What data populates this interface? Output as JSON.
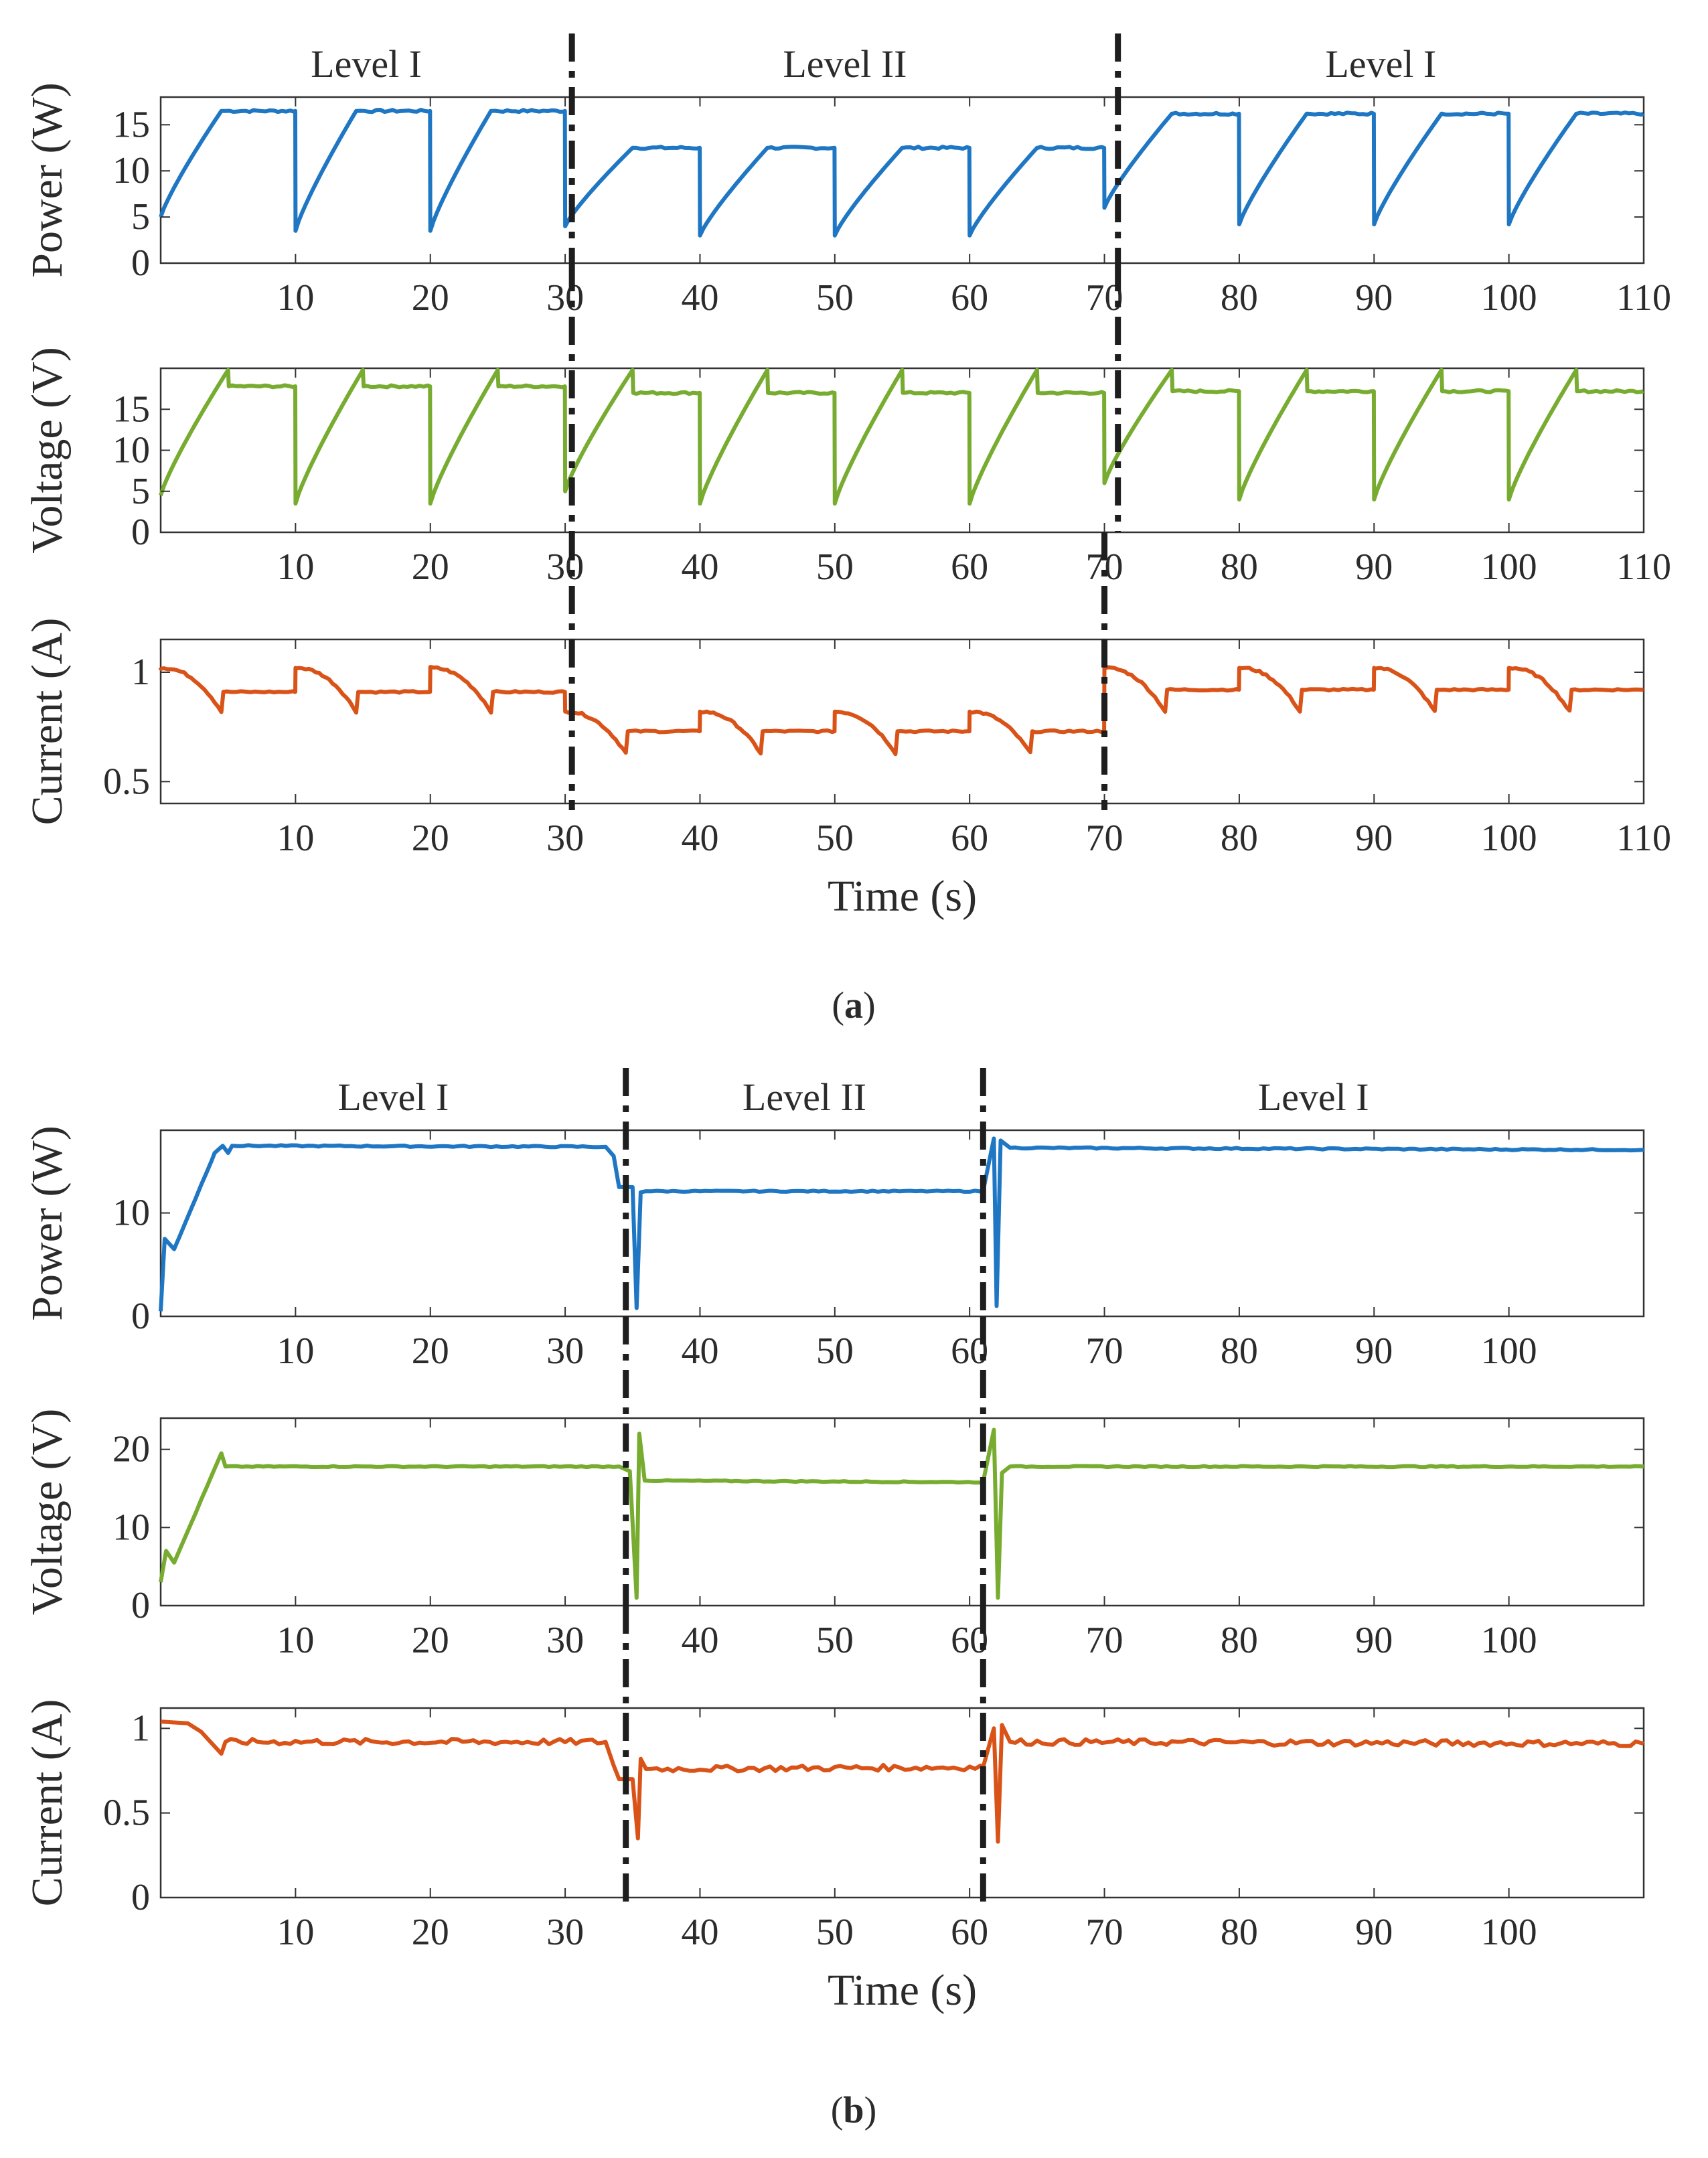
{
  "figure": {
    "panel_a_label": {
      "open": "(",
      "letter": "a",
      "close": ")"
    },
    "panel_b_label": {
      "open": "(",
      "letter": "b",
      "close": ")"
    }
  },
  "colors": {
    "power": "#1f77c4",
    "voltage": "#77ac30",
    "current": "#d95319",
    "divider": "#1e1e1e",
    "axes": "#333333"
  },
  "chart_data": [
    {
      "type": "line",
      "title": "Power (a)",
      "xlabel": "",
      "ylabel": "Power (W)",
      "xlim": [
        0,
        110
      ],
      "ylim": [
        0,
        18
      ],
      "xticks": [
        10,
        20,
        30,
        40,
        50,
        60,
        70,
        80,
        90,
        100,
        110
      ],
      "yticks": [
        0,
        5,
        10,
        15
      ],
      "series": [
        {
          "name": "Power",
          "color": "#1f77c4",
          "pattern": "sawtooth",
          "segments": [
            {
              "t0": 0,
              "t1": 30,
              "level": 16.5,
              "start": 5,
              "period": 10,
              "rise": 4.5,
              "drop": 3.5
            },
            {
              "t0": 30,
              "t1": 70,
              "level": 12.5,
              "start": 4,
              "period": 10,
              "rise": 5,
              "drop": 3
            },
            {
              "t0": 70,
              "t1": 110,
              "level": 16.2,
              "start": 6,
              "period": 10,
              "rise": 5,
              "drop": 4.2
            }
          ]
        }
      ],
      "level_annotations": [
        "Level I",
        "Level II",
        "Level I"
      ],
      "dividers": [
        30.5,
        71
      ]
    },
    {
      "type": "line",
      "title": "Voltage (a)",
      "xlabel": "",
      "ylabel": "Voltage (V)",
      "xlim": [
        0,
        110
      ],
      "ylim": [
        0,
        20
      ],
      "xticks": [
        10,
        20,
        30,
        40,
        50,
        60,
        70,
        80,
        90,
        100,
        110
      ],
      "yticks": [
        0,
        5,
        10,
        15
      ],
      "series": [
        {
          "name": "Voltage",
          "color": "#77ac30",
          "pattern": "sawtooth",
          "segments": [
            {
              "t0": 0,
              "t1": 30,
              "level": 17.8,
              "start": 4.5,
              "peak": 19.8,
              "period": 10,
              "rise": 5,
              "drop": 3.5
            },
            {
              "t0": 30,
              "t1": 70,
              "level": 17.0,
              "start": 5,
              "peak": 19.8,
              "period": 10,
              "rise": 5,
              "drop": 3.5
            },
            {
              "t0": 70,
              "t1": 110,
              "level": 17.2,
              "start": 6,
              "peak": 19.8,
              "period": 10,
              "rise": 5,
              "drop": 4
            }
          ]
        }
      ],
      "dividers": [
        30.5,
        71
      ]
    },
    {
      "type": "line",
      "title": "Current (a)",
      "xlabel": "Time (s)",
      "ylabel": "Current (A)",
      "xlim": [
        0,
        110
      ],
      "ylim": [
        0.4,
        1.15
      ],
      "xticks": [
        10,
        20,
        30,
        40,
        50,
        60,
        70,
        80,
        90,
        100,
        110
      ],
      "yticks": [
        0.5,
        1
      ],
      "series": [
        {
          "name": "Current",
          "color": "#d95319",
          "pattern": "step-decay",
          "segments": [
            {
              "t0": 0,
              "t1": 30,
              "high": 1.02,
              "low": 0.91,
              "dip": 0.82,
              "period": 10
            },
            {
              "t0": 30,
              "t1": 70,
              "high": 0.82,
              "low": 0.73,
              "dip": 0.63,
              "period": 10
            },
            {
              "t0": 70,
              "t1": 110,
              "high": 1.02,
              "low": 0.92,
              "dip": 0.82,
              "period": 10
            }
          ]
        }
      ],
      "dividers": [
        30.5,
        70
      ]
    },
    {
      "type": "line",
      "title": "Power (b)",
      "xlabel": "",
      "ylabel": "Power (W)",
      "xlim": [
        0,
        110
      ],
      "ylim": [
        0,
        18
      ],
      "xticks": [
        10,
        20,
        30,
        40,
        50,
        60,
        70,
        80,
        90,
        100
      ],
      "yticks": [
        0,
        10
      ],
      "series": [
        {
          "name": "Power",
          "color": "#1f77c4",
          "pattern": "steady",
          "points": [
            [
              0,
              0.5
            ],
            [
              0.3,
              7.5
            ],
            [
              1,
              6.5
            ],
            [
              4,
              15.8
            ],
            [
              4.6,
              16.5
            ],
            [
              5,
              15.8
            ],
            [
              5.3,
              16.5
            ],
            [
              33,
              16.4
            ],
            [
              33.6,
              15.5
            ],
            [
              34,
              12.5
            ],
            [
              35,
              12.5
            ],
            [
              35.3,
              0.8
            ],
            [
              35.6,
              12.0
            ],
            [
              36,
              12.1
            ],
            [
              61,
              12.1
            ],
            [
              61.8,
              17.2
            ],
            [
              62,
              1.0
            ],
            [
              62.3,
              17.0
            ],
            [
              63,
              16.3
            ],
            [
              110,
              16.1
            ]
          ]
        }
      ],
      "level_annotations": [
        "Level I",
        "Level II",
        "Level I"
      ],
      "dividers": [
        34.5,
        61
      ]
    },
    {
      "type": "line",
      "title": "Voltage (b)",
      "xlabel": "",
      "ylabel": "Voltage (V)",
      "xlim": [
        0,
        110
      ],
      "ylim": [
        0,
        24
      ],
      "xticks": [
        10,
        20,
        30,
        40,
        50,
        60,
        70,
        80,
        90,
        100
      ],
      "yticks": [
        0,
        10,
        20
      ],
      "series": [
        {
          "name": "Voltage",
          "color": "#77ac30",
          "pattern": "steady",
          "points": [
            [
              0,
              3
            ],
            [
              0.4,
              7
            ],
            [
              1,
              5.5
            ],
            [
              4.5,
              19.5
            ],
            [
              4.8,
              17.8
            ],
            [
              34,
              17.8
            ],
            [
              34.8,
              17.2
            ],
            [
              35.3,
              1.0
            ],
            [
              35.5,
              22
            ],
            [
              35.9,
              16
            ],
            [
              61,
              15.8
            ],
            [
              61.8,
              22.5
            ],
            [
              62.1,
              1.0
            ],
            [
              62.4,
              17.0
            ],
            [
              63,
              17.8
            ],
            [
              110,
              17.8
            ]
          ]
        }
      ],
      "dividers": [
        34.5,
        61
      ]
    },
    {
      "type": "line",
      "title": "Current (b)",
      "xlabel": "Time (s)",
      "ylabel": "Current (A)",
      "xlim": [
        0,
        110
      ],
      "ylim": [
        0,
        1.12
      ],
      "xticks": [
        10,
        20,
        30,
        40,
        50,
        60,
        70,
        80,
        90,
        100
      ],
      "yticks": [
        0,
        0.5,
        1
      ],
      "series": [
        {
          "name": "Current",
          "color": "#d95319",
          "pattern": "steady",
          "points": [
            [
              0,
              1.04
            ],
            [
              2,
              1.03
            ],
            [
              3,
              0.98
            ],
            [
              4.5,
              0.85
            ],
            [
              4.8,
              0.92
            ],
            [
              33,
              0.92
            ],
            [
              33.6,
              0.78
            ],
            [
              34,
              0.7
            ],
            [
              35,
              0.7
            ],
            [
              35.4,
              0.35
            ],
            [
              35.6,
              0.82
            ],
            [
              36,
              0.76
            ],
            [
              61,
              0.77
            ],
            [
              61.8,
              1.0
            ],
            [
              62.1,
              0.33
            ],
            [
              62.4,
              1.02
            ],
            [
              63,
              0.92
            ],
            [
              110,
              0.91
            ]
          ]
        }
      ],
      "dividers": [
        34.5,
        61
      ]
    }
  ]
}
